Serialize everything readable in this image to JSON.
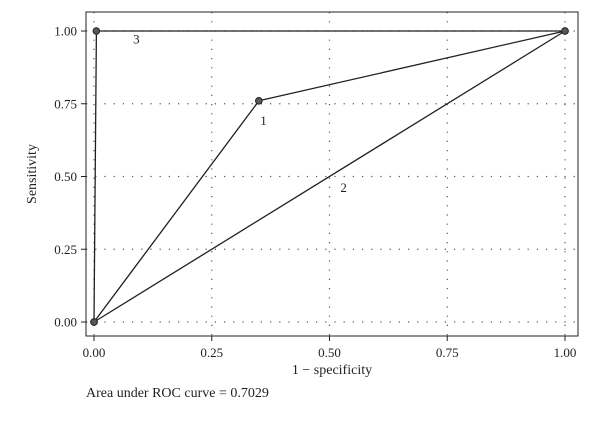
{
  "chart_data": {
    "type": "line",
    "xlabel": "1 − specificity",
    "ylabel": "Sensitivity",
    "xlim": [
      0,
      1
    ],
    "ylim": [
      0,
      1
    ],
    "x_ticks": [
      "0.00",
      "0.25",
      "0.50",
      "0.75",
      "1.00"
    ],
    "y_ticks": [
      "0.00",
      "0.25",
      "0.50",
      "0.75",
      "1.00"
    ],
    "grid": true,
    "series": [
      {
        "name": "1",
        "x": [
          0,
          0.35,
          1
        ],
        "y": [
          0,
          0.76,
          1
        ],
        "markers": true
      },
      {
        "name": "2",
        "x": [
          0,
          1
        ],
        "y": [
          0,
          1
        ],
        "markers": false
      },
      {
        "name": "3",
        "x": [
          0,
          0.005,
          1
        ],
        "y": [
          0,
          1,
          1
        ],
        "markers": true
      }
    ],
    "series_label_positions": [
      {
        "series": "1",
        "x": 0.36,
        "y": 0.69
      },
      {
        "series": "2",
        "x": 0.53,
        "y": 0.46
      },
      {
        "series": "3",
        "x": 0.09,
        "y": 0.97
      }
    ],
    "colors": {
      "line": "#231f20",
      "marker_fill": "#58595b",
      "grid": "#555555"
    }
  },
  "footer": {
    "text": "Area under ROC curve = 0.7029"
  }
}
